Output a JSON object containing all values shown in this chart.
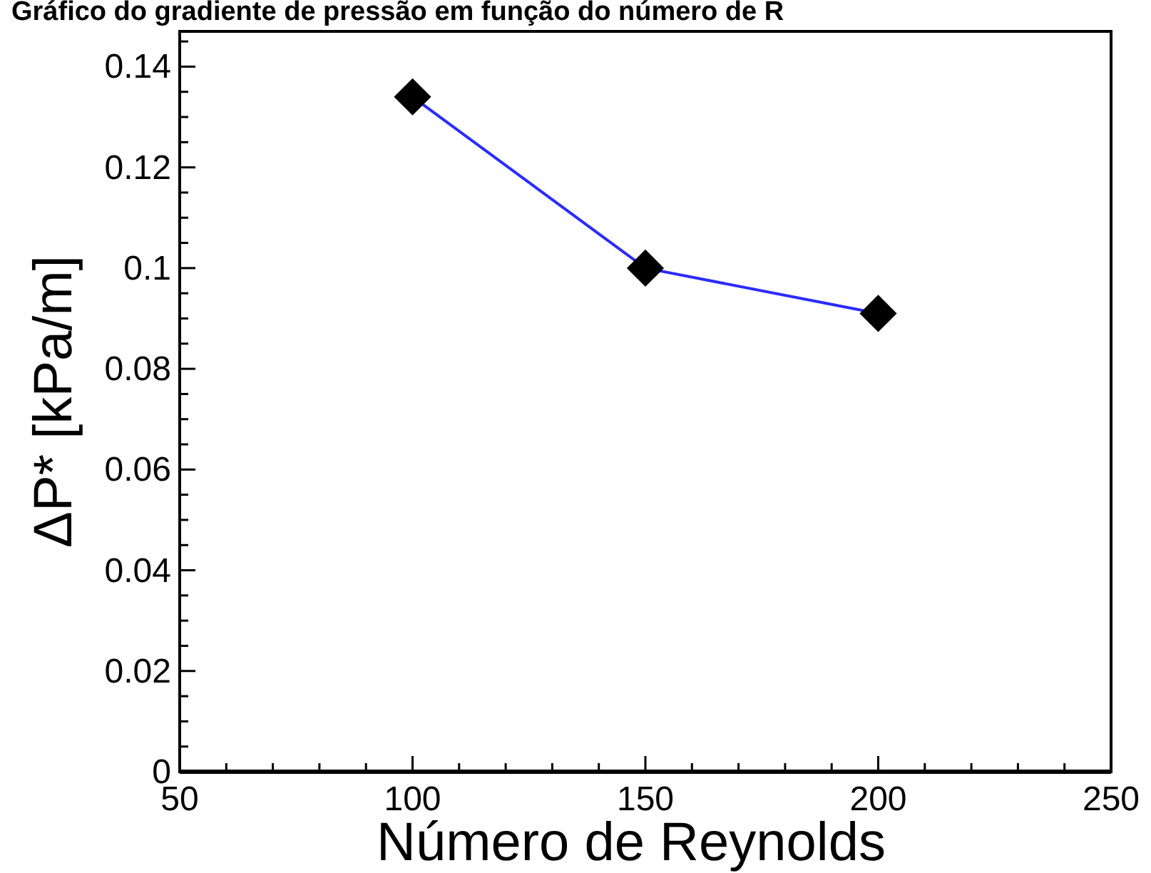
{
  "chart_data": {
    "type": "line",
    "title": "Gráfico do gradiente de pressão em função do número de R",
    "xlabel": "Número de Reynolds",
    "ylabel": "ΔP* [kPa/m]",
    "x": [
      100,
      150,
      200
    ],
    "series": [
      {
        "color": "#2b2bff",
        "values": [
          0.134,
          0.1,
          0.091
        ]
      }
    ],
    "xlim": [
      50,
      250
    ],
    "ylim": [
      0,
      0.147
    ],
    "xticks": [
      50,
      {
        "value": 60,
        "label": null
      },
      {
        "value": 70,
        "label": null
      },
      {
        "value": 80,
        "label": null
      },
      {
        "value": 90,
        "label": null
      },
      100,
      {
        "value": 110,
        "label": null
      },
      {
        "value": 120,
        "label": null
      },
      {
        "value": 130,
        "label": null
      },
      {
        "value": 140,
        "label": null
      },
      150,
      {
        "value": 160,
        "label": null
      },
      {
        "value": 170,
        "label": null
      },
      {
        "value": 180,
        "label": null
      },
      {
        "value": 190,
        "label": null
      },
      200,
      {
        "value": 210,
        "label": null
      },
      {
        "value": 220,
        "label": null
      },
      {
        "value": 230,
        "label": null
      },
      {
        "value": 240,
        "label": null
      },
      250
    ],
    "yticks": [
      0,
      {
        "value": 0.005,
        "label": null
      },
      {
        "value": 0.01,
        "label": null
      },
      {
        "value": 0.015,
        "label": null
      },
      0.02,
      {
        "value": 0.025,
        "label": null
      },
      {
        "value": 0.03,
        "label": null
      },
      {
        "value": 0.035,
        "label": null
      },
      0.04,
      {
        "value": 0.045,
        "label": null
      },
      {
        "value": 0.05,
        "label": null
      },
      {
        "value": 0.055,
        "label": null
      },
      0.06,
      {
        "value": 0.065,
        "label": null
      },
      {
        "value": 0.07,
        "label": null
      },
      {
        "value": 0.075,
        "label": null
      },
      0.08,
      {
        "value": 0.085,
        "label": null
      },
      {
        "value": 0.09,
        "label": null
      },
      {
        "value": 0.095,
        "label": null
      },
      {
        "value": 0.1,
        "label": "0.1"
      },
      {
        "value": 0.105,
        "label": null
      },
      {
        "value": 0.11,
        "label": null
      },
      {
        "value": 0.115,
        "label": null
      },
      0.12,
      {
        "value": 0.125,
        "label": null
      },
      {
        "value": 0.13,
        "label": null
      },
      {
        "value": 0.135,
        "label": null
      },
      0.14,
      {
        "value": 0.145,
        "label": null
      }
    ],
    "grid": false,
    "marker": "diamond",
    "line_style": "solid"
  }
}
